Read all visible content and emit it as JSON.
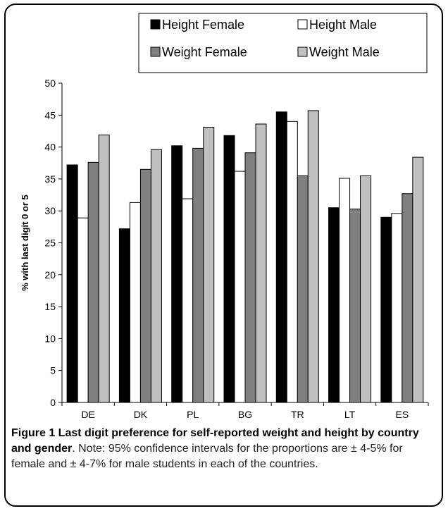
{
  "chart_data": {
    "type": "bar",
    "categories": [
      "DE",
      "DK",
      "PL",
      "BG",
      "TR",
      "LT",
      "ES"
    ],
    "series": [
      {
        "name": "Height Female",
        "values": [
          37.2,
          27.2,
          40.2,
          41.8,
          45.5,
          30.5,
          29.0
        ],
        "color": "#000000"
      },
      {
        "name": "Height Male",
        "values": [
          28.9,
          31.3,
          31.9,
          36.2,
          44.0,
          35.1,
          29.6
        ],
        "color": "#ffffff"
      },
      {
        "name": "Weight Female",
        "values": [
          37.6,
          36.5,
          39.8,
          39.1,
          35.5,
          30.3,
          32.7
        ],
        "color": "#808080"
      },
      {
        "name": "Weight Male",
        "values": [
          41.9,
          39.6,
          43.1,
          43.6,
          45.7,
          35.5,
          38.4
        ],
        "color": "#c0c0c0"
      }
    ],
    "ylabel": "% with last digit 0 or 5",
    "xlabel": "",
    "ylim": [
      0,
      50
    ],
    "yticks": [
      0,
      5,
      10,
      15,
      20,
      25,
      30,
      35,
      40,
      45,
      50
    ],
    "grid": false,
    "legend_position": "top-right"
  },
  "caption": {
    "title": "Figure 1 Last digit preference for self-reported weight and height by country and gender",
    "body": ". Note: 95% confidence intervals for the proportions are ± 4-5% for female and ± 4-7% for male students in each of the countries."
  }
}
